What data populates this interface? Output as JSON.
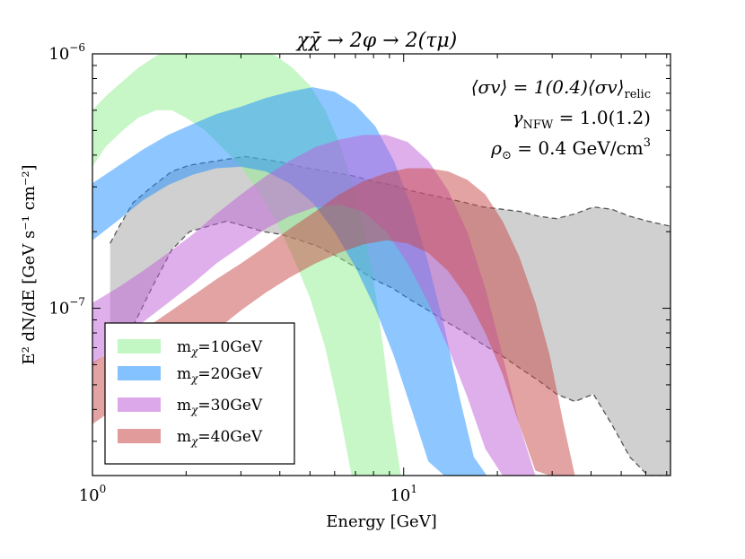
{
  "chart_data": {
    "type": "area",
    "title": "χχ̄ → 2φ → 2(τμ)",
    "xlabel": "Energy [GeV]",
    "ylabel": "E² dN/dE [GeV s⁻¹ cm⁻²]",
    "x_scale": "log",
    "y_scale": "log",
    "xlim": [
      1.0,
      72.0
    ],
    "ylim": [
      2.2e-08,
      1e-06
    ],
    "x_ticks": [
      {
        "value": 1,
        "label": "10",
        "exp": "0"
      },
      {
        "value": 10,
        "label": "10",
        "exp": "1"
      }
    ],
    "y_ticks": [
      {
        "value": 1e-07,
        "label": "10",
        "exp": "−7"
      },
      {
        "value": 1e-06,
        "label": "10",
        "exp": "−6"
      }
    ],
    "annotations": [
      {
        "main": "⟨σv⟩ = 1(0.4)⟨σv⟩",
        "sub": "relic"
      },
      {
        "main_pre": "γ",
        "sub": "NFW",
        "main": " = 1.0(1.2)"
      },
      {
        "main_pre": "ρ",
        "sub": "⊙",
        "main": " = 0.4 GeV/cm",
        "sup": "3"
      }
    ],
    "legend": {
      "placement": "lower-left",
      "entries": [
        {
          "label_pre": "m",
          "sub": "χ",
          "label": "=10GeV",
          "color": "#90ee90"
        },
        {
          "label_pre": "m",
          "sub": "χ",
          "label": "=20GeV",
          "color": "#1e90ff"
        },
        {
          "label_pre": "m",
          "sub": "χ",
          "label": "=30GeV",
          "color": "#c060d8"
        },
        {
          "label_pre": "m",
          "sub": "χ",
          "label": "=40GeV",
          "color": "#c84848"
        }
      ]
    },
    "data_band": {
      "name": "data (grey band)",
      "color": "#c8c8c8",
      "x": [
        1.14,
        1.22,
        1.35,
        1.55,
        1.8,
        2.05,
        2.35,
        2.7,
        3.1,
        3.55,
        4.05,
        4.65,
        5.3,
        6.1,
        7.0,
        8.0,
        9.2,
        10.5,
        12.0,
        13.8,
        15.8,
        18.0,
        20.7,
        23.7,
        27.1,
        31.0,
        35.5,
        40.7,
        46.6,
        53.3,
        61.0,
        72.0
      ],
      "upper": [
        1.8e-07,
        2.1e-07,
        2.6e-07,
        3e-07,
        3.45e-07,
        3.65e-07,
        3.75e-07,
        3.85e-07,
        3.95e-07,
        3.85e-07,
        3.75e-07,
        3.6e-07,
        3.5e-07,
        3.4e-07,
        3.3e-07,
        3.15e-07,
        3.05e-07,
        2.9e-07,
        2.8e-07,
        2.7e-07,
        2.6e-07,
        2.5e-07,
        2.45e-07,
        2.4e-07,
        2.3e-07,
        2.25e-07,
        2.35e-07,
        2.5e-07,
        2.45e-07,
        2.3e-07,
        2.2e-07,
        2.1e-07
      ],
      "lower": [
        5.5e-08,
        6.5e-08,
        8.5e-08,
        1.2e-07,
        1.7e-07,
        2e-07,
        2.1e-07,
        2.2e-07,
        2.1e-07,
        2e-07,
        1.95e-07,
        1.85e-07,
        1.75e-07,
        1.6e-07,
        1.45e-07,
        1.3e-07,
        1.2e-07,
        1.08e-07,
        9.8e-08,
        8.8e-08,
        8e-08,
        7.2e-08,
        6.5e-08,
        5.8e-08,
        5.2e-08,
        4.6e-08,
        4.3e-08,
        4.6e-08,
        3.5e-08,
        2.6e-08,
        2.2e-08,
        2.2e-08
      ]
    },
    "series": [
      {
        "name": "m_χ=10GeV",
        "color": "#90ee90",
        "x": [
          1.0,
          1.1,
          1.25,
          1.4,
          1.6,
          1.8,
          2.0,
          2.3,
          2.6,
          3.0,
          3.4,
          3.9,
          4.4,
          5.0,
          5.6,
          6.2,
          6.8,
          7.4,
          8.0,
          8.6,
          9.2,
          9.8
        ],
        "upper": [
          6e-07,
          6.8e-07,
          7.8e-07,
          8.8e-07,
          9.8e-07,
          1.05e-06,
          1.1e-06,
          1.12e-06,
          1.12e-06,
          1.1e-06,
          1.05e-06,
          9.8e-07,
          8.8e-07,
          7.5e-07,
          6e-07,
          4.5e-07,
          3.2e-07,
          2.1e-07,
          1.3e-07,
          7e-08,
          3.6e-08,
          2.2e-08
        ],
        "lower": [
          3.6e-07,
          4.3e-07,
          5e-07,
          5.6e-07,
          6e-07,
          6e-07,
          5.6e-07,
          5e-07,
          4.3e-07,
          3.6e-07,
          2.9e-07,
          2.2e-07,
          1.6e-07,
          1.1e-07,
          7e-08,
          4e-08,
          2.2e-08,
          2.2e-08,
          2.2e-08,
          2.2e-08,
          2.2e-08,
          2.2e-08
        ]
      },
      {
        "name": "m_χ=20GeV",
        "color": "#1e90ff",
        "x": [
          1.0,
          1.2,
          1.45,
          1.75,
          2.1,
          2.5,
          3.0,
          3.6,
          4.3,
          5.1,
          6.0,
          7.0,
          8.1,
          9.3,
          10.6,
          12.0,
          13.5,
          15.1,
          16.8,
          18.5
        ],
        "upper": [
          3.1e-07,
          3.6e-07,
          4.2e-07,
          4.8e-07,
          5.3e-07,
          5.8e-07,
          6.2e-07,
          6.7e-07,
          7.1e-07,
          7.4e-07,
          7.1e-07,
          6.3e-07,
          5.2e-07,
          3.8e-07,
          2.5e-07,
          1.5e-07,
          8.5e-08,
          4.5e-08,
          2.6e-08,
          2.2e-08
        ],
        "lower": [
          1.85e-07,
          2.2e-07,
          2.65e-07,
          3.05e-07,
          3.35e-07,
          3.55e-07,
          3.6e-07,
          3.45e-07,
          3.1e-07,
          2.6e-07,
          2e-07,
          1.45e-07,
          1e-07,
          6.5e-08,
          4e-08,
          2.5e-08,
          2.2e-08,
          2.2e-08,
          2.2e-08,
          2.2e-08
        ]
      },
      {
        "name": "m_χ=30GeV",
        "color": "#c060d8",
        "x": [
          1.0,
          1.2,
          1.45,
          1.75,
          2.1,
          2.5,
          3.0,
          3.6,
          4.3,
          5.2,
          6.2,
          7.4,
          8.8,
          10.3,
          12.0,
          13.9,
          16.0,
          18.3,
          20.8,
          23.5,
          26.5
        ],
        "upper": [
          1.05e-07,
          1.2e-07,
          1.4e-07,
          1.65e-07,
          1.95e-07,
          2.35e-07,
          2.8e-07,
          3.3e-07,
          3.8e-07,
          4.3e-07,
          4.6e-07,
          4.8e-07,
          4.8e-07,
          4.5e-07,
          3.8e-07,
          2.9e-07,
          2e-07,
          1.2e-07,
          6.5e-08,
          3.5e-08,
          2.2e-08
        ],
        "lower": [
          6e-08,
          7.2e-08,
          8.8e-08,
          1.05e-07,
          1.25e-07,
          1.5e-07,
          1.75e-07,
          2.05e-07,
          2.3e-07,
          2.5e-07,
          2.55e-07,
          2.4e-07,
          2e-07,
          1.5e-07,
          1.05e-07,
          7e-08,
          4.5e-08,
          2.8e-08,
          2.2e-08,
          2.2e-08,
          2.2e-08
        ]
      },
      {
        "name": "m_χ=40GeV",
        "color": "#c84848",
        "x": [
          1.0,
          1.2,
          1.45,
          1.75,
          2.1,
          2.5,
          3.0,
          3.6,
          4.3,
          5.2,
          6.2,
          7.4,
          8.8,
          10.3,
          12.0,
          13.9,
          16.0,
          18.3,
          20.8,
          23.5,
          26.5,
          29.5,
          32.5,
          35.5
        ],
        "upper": [
          6.1e-08,
          7e-08,
          8.2e-08,
          9.6e-08,
          1.12e-07,
          1.3e-07,
          1.5e-07,
          1.75e-07,
          2.05e-07,
          2.4e-07,
          2.8e-07,
          3.15e-07,
          3.4e-07,
          3.55e-07,
          3.55e-07,
          3.45e-07,
          3.2e-07,
          2.8e-07,
          2.2e-07,
          1.6e-07,
          1.05e-07,
          6.5e-08,
          3.6e-08,
          2.2e-08
        ],
        "lower": [
          3.5e-08,
          4.1e-08,
          4.9e-08,
          5.8e-08,
          6.9e-08,
          8.2e-08,
          9.8e-08,
          1.15e-07,
          1.32e-07,
          1.5e-07,
          1.65e-07,
          1.78e-07,
          1.85e-07,
          1.8e-07,
          1.65e-07,
          1.4e-07,
          1.1e-07,
          8e-08,
          5.5e-08,
          3.5e-08,
          2.3e-08,
          2.2e-08,
          2.2e-08,
          2.2e-08
        ]
      }
    ]
  }
}
